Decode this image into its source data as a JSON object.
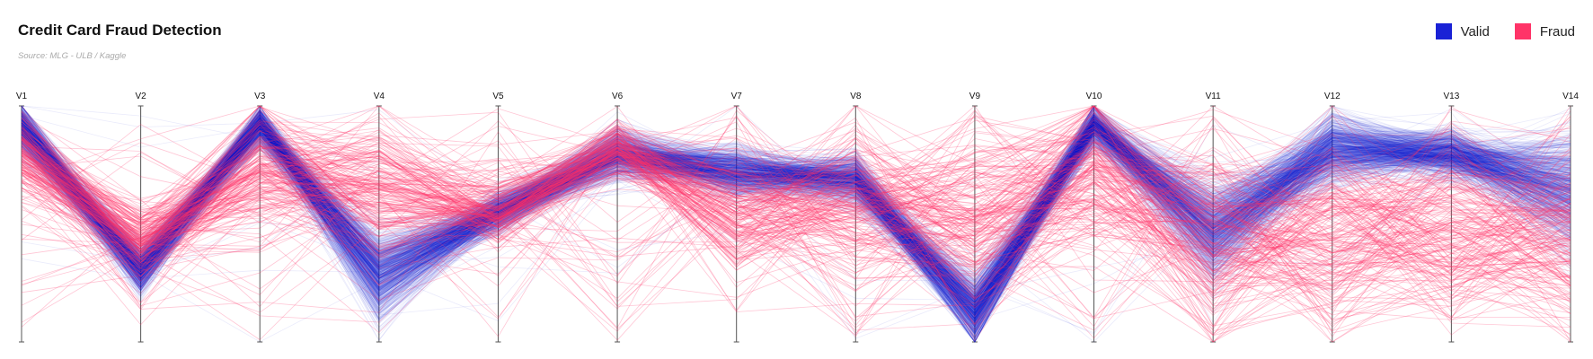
{
  "title": "Credit Card Fraud Detection",
  "subtitle": "Source: MLG - ULB / Kaggle",
  "legend": {
    "valid": {
      "label": "Valid",
      "color": "#1a22d6"
    },
    "fraud": {
      "label": "Fraud",
      "color": "#ff3468"
    }
  },
  "chart_data": {
    "type": "parallel-coordinates",
    "dimensions": [
      "V1",
      "V2",
      "V3",
      "V4",
      "V5",
      "V6",
      "V7",
      "V8",
      "V9",
      "V10",
      "V11",
      "V12",
      "V13",
      "V14"
    ],
    "normalized_range": [
      0,
      1
    ],
    "grid": false,
    "legend_position": "top-right",
    "series": [
      {
        "name": "Valid",
        "color": "#1a22d6",
        "line_count_shown": 700,
        "profile_mean": [
          0.91,
          0.31,
          0.92,
          0.28,
          0.55,
          0.8,
          0.72,
          0.69,
          0.13,
          0.92,
          0.47,
          0.82,
          0.8,
          0.64
        ],
        "profile_spread": [
          0.05,
          0.05,
          0.04,
          0.09,
          0.04,
          0.05,
          0.05,
          0.05,
          0.07,
          0.04,
          0.1,
          0.07,
          0.05,
          0.12
        ]
      },
      {
        "name": "Fraud",
        "color": "#ff3468",
        "line_count_shown": 210,
        "profile_mean": [
          0.8,
          0.42,
          0.74,
          0.62,
          0.55,
          0.82,
          0.56,
          0.58,
          0.52,
          0.72,
          0.42,
          0.45,
          0.48,
          0.44
        ],
        "profile_spread": [
          0.08,
          0.08,
          0.13,
          0.17,
          0.07,
          0.06,
          0.15,
          0.15,
          0.2,
          0.16,
          0.2,
          0.2,
          0.2,
          0.2
        ]
      }
    ]
  }
}
